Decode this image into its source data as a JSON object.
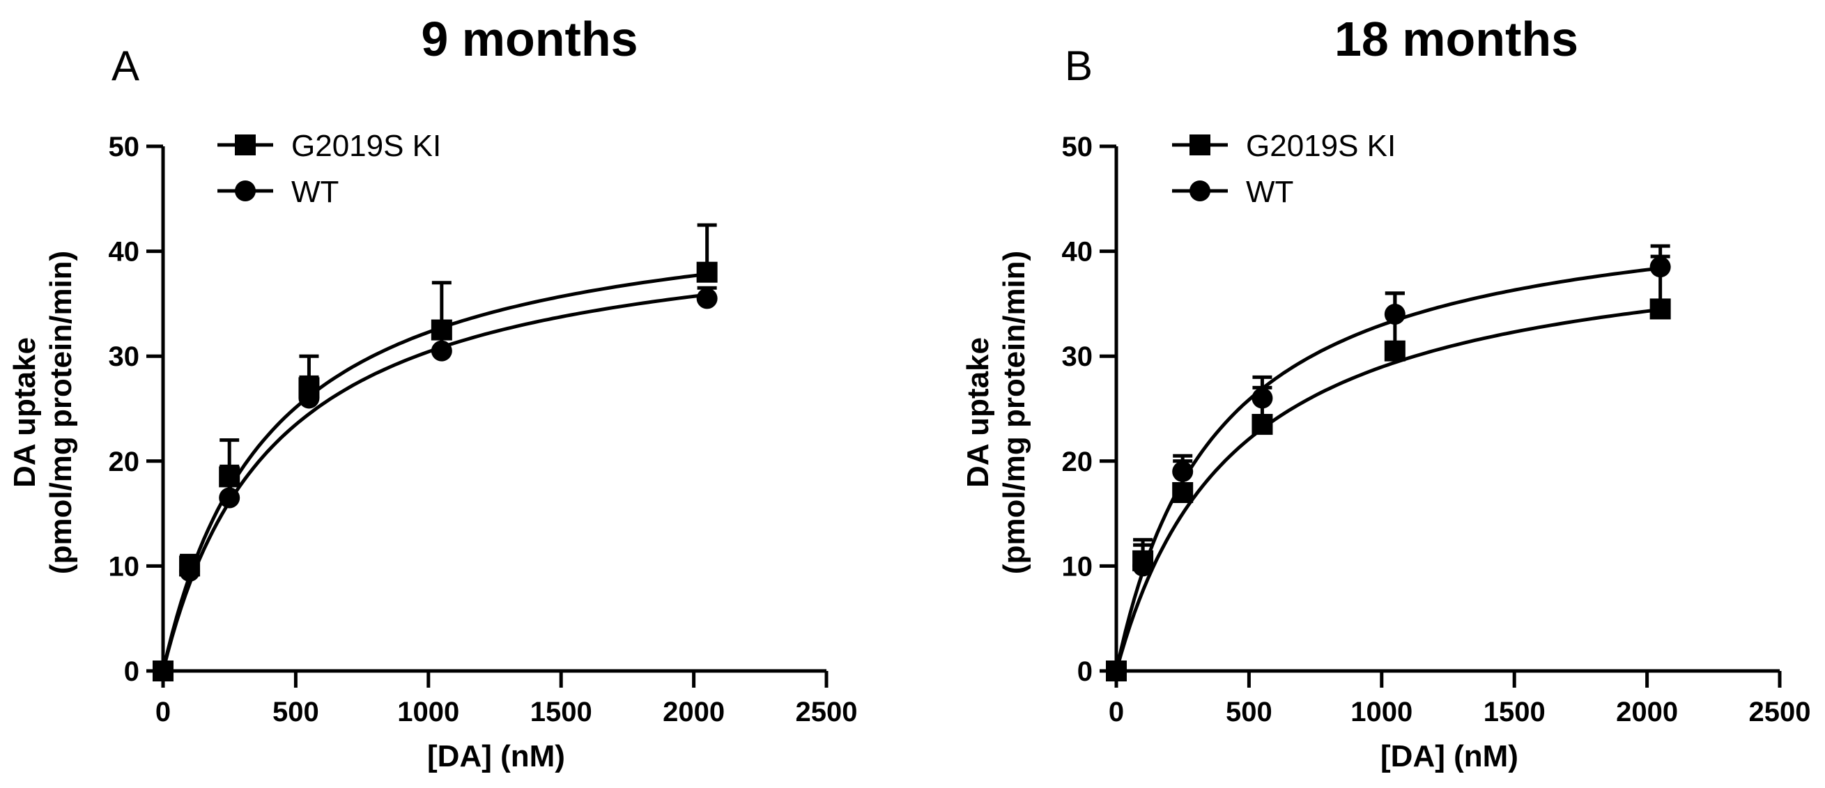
{
  "figure": {
    "background": "#ffffff",
    "ink": "#000000"
  },
  "chart_data": [
    {
      "type": "scatter",
      "panel_label": "A",
      "title": "9 months",
      "xlabel": "[DA] (nM)",
      "ylabel_line1": "DA uptake",
      "ylabel_line2": "(pmol/mg protein/min)",
      "xlim": [
        0,
        2500
      ],
      "ylim": [
        0,
        50
      ],
      "x_ticks": [
        "0",
        "500",
        "1000",
        "1500",
        "2000",
        "2500"
      ],
      "y_ticks": [
        "0",
        "10",
        "20",
        "30",
        "40",
        "50"
      ],
      "legend_position": "top-left",
      "series": [
        {
          "name": "G2019S KI",
          "marker": "square",
          "x": [
            0,
            100,
            250,
            550,
            1050,
            2050
          ],
          "y": [
            0,
            10,
            18.5,
            27,
            32.5,
            38
          ],
          "error_upper": [
            0,
            11,
            22,
            30,
            37,
            42.5
          ],
          "fit": {
            "model": "michaelis-menten",
            "vmax": 45.2,
            "km": 400
          }
        },
        {
          "name": "WT",
          "marker": "circle",
          "x": [
            0,
            100,
            250,
            550,
            1050,
            2050
          ],
          "y": [
            0,
            9.5,
            16.5,
            26,
            30.5,
            35.5
          ],
          "error_upper": [
            0,
            10.5,
            19.5,
            28,
            32,
            36.5
          ],
          "fit": {
            "model": "michaelis-menten",
            "vmax": 43.2,
            "km": 420
          }
        }
      ]
    },
    {
      "type": "scatter",
      "panel_label": "B",
      "title": "18 months",
      "xlabel": "[DA] (nM)",
      "ylabel_line1": "DA uptake",
      "ylabel_line2": "(pmol/mg protein/min)",
      "xlim": [
        0,
        2500
      ],
      "ylim": [
        0,
        50
      ],
      "x_ticks": [
        "0",
        "500",
        "1000",
        "1500",
        "2000",
        "2500"
      ],
      "y_ticks": [
        "0",
        "10",
        "20",
        "30",
        "40",
        "50"
      ],
      "legend_position": "top-left",
      "series": [
        {
          "name": "G2019S KI",
          "marker": "square",
          "x": [
            0,
            100,
            250,
            550,
            1050,
            2050
          ],
          "y": [
            0,
            10.5,
            17,
            23.5,
            30.5,
            34.5
          ],
          "error_upper": [
            0,
            12,
            20,
            27,
            36,
            39.5
          ],
          "fit": {
            "model": "michaelis-menten",
            "vmax": 42,
            "km": 450
          }
        },
        {
          "name": "WT",
          "marker": "circle",
          "x": [
            0,
            100,
            250,
            550,
            1050,
            2050
          ],
          "y": [
            0,
            10,
            19,
            26,
            34,
            38.5
          ],
          "error_upper": [
            0,
            12.5,
            20.5,
            28,
            36,
            40.5
          ],
          "fit": {
            "model": "michaelis-menten",
            "vmax": 45.5,
            "km": 380
          }
        }
      ]
    }
  ]
}
